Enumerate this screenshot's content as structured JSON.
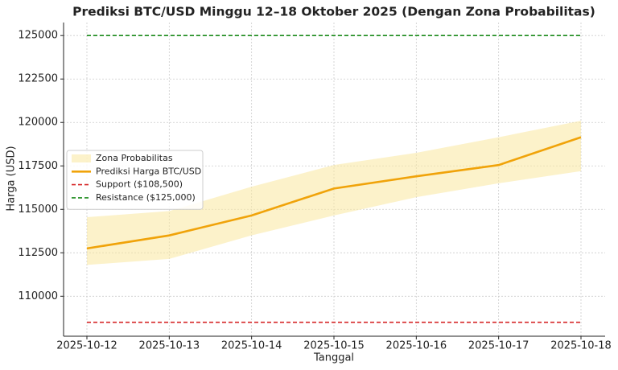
{
  "chart_data": {
    "type": "line",
    "title": "Prediksi BTC/USD Minggu 12–18 Oktober 2025 (Dengan Zona Probabilitas)",
    "x_label": "Tanggal",
    "y_label": "Harga (USD)",
    "categories": [
      "2025-10-12",
      "2025-10-13",
      "2025-10-14",
      "2025-10-15",
      "2025-10-16",
      "2025-10-17",
      "2025-10-18"
    ],
    "band": {
      "name": "Zona Probabilitas",
      "color": "#f9e79f",
      "lower": [
        111800,
        112150,
        113500,
        114650,
        115700,
        116500,
        117200
      ],
      "upper": [
        114550,
        114900,
        116300,
        117550,
        118250,
        119150,
        120100
      ]
    },
    "series": [
      {
        "name": "Prediksi Harga BTC/USD",
        "color": "#f0a30a",
        "values": [
          112750,
          113500,
          114650,
          116200,
          116900,
          117550,
          119150
        ]
      }
    ],
    "reference_lines": [
      {
        "name": "Support ($108,500)",
        "value": 108500,
        "color": "#d62728",
        "style": "dashed"
      },
      {
        "name": "Resistance ($125,000)",
        "value": 125000,
        "color": "#1a8a1a",
        "style": "dashed"
      }
    ],
    "ylim": [
      107700,
      125750
    ],
    "yticks": [
      110000,
      112500,
      115000,
      117500,
      120000,
      122500,
      125000
    ],
    "grid": true,
    "legend": "center left"
  }
}
